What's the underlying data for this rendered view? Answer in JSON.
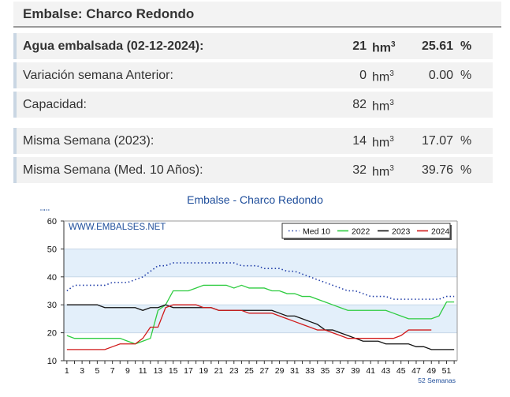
{
  "header": {
    "title": "Embalse: Charco Redondo"
  },
  "rows": [
    {
      "label": "Agua embalsada (02-12-2024):",
      "value": "21",
      "unit": "hm",
      "pct": "25.61",
      "pct_sign": "%"
    },
    {
      "label": "Variación semana Anterior:",
      "value": "0",
      "unit": "hm",
      "pct": "0.00",
      "pct_sign": "%"
    },
    {
      "label": "Capacidad:",
      "value": "82",
      "unit": "hm",
      "pct": "",
      "pct_sign": ""
    },
    {
      "label": "Misma Semana (2023):",
      "value": "14",
      "unit": "hm",
      "pct": "17.07",
      "pct_sign": "%"
    },
    {
      "label": "Misma Semana (Med. 10 Años):",
      "value": "32",
      "unit": "hm",
      "pct": "39.76",
      "pct_sign": "%"
    }
  ],
  "chart_data": {
    "type": "line",
    "title": "Embalse - Charco Redondo",
    "ylabel": "hm3",
    "xlabel": "52 Semanas",
    "watermark": "WWW.EMBALSES.NET",
    "ylim": [
      10,
      60
    ],
    "yticks": [
      10,
      20,
      30,
      40,
      50,
      60
    ],
    "xticks": [
      1,
      3,
      5,
      7,
      9,
      11,
      13,
      15,
      17,
      19,
      21,
      23,
      25,
      27,
      29,
      31,
      33,
      35,
      37,
      39,
      41,
      43,
      45,
      47,
      49,
      51
    ],
    "legend_position": "top-right",
    "series": [
      {
        "name": "Med 10",
        "color": "#1f3ca8",
        "dashed": true,
        "x": [
          1,
          2,
          3,
          4,
          5,
          6,
          7,
          8,
          9,
          10,
          11,
          12,
          13,
          14,
          15,
          16,
          17,
          18,
          19,
          20,
          21,
          22,
          23,
          24,
          25,
          26,
          27,
          28,
          29,
          30,
          31,
          32,
          33,
          34,
          35,
          36,
          37,
          38,
          39,
          40,
          41,
          42,
          43,
          44,
          45,
          46,
          47,
          48,
          49,
          50,
          51,
          52
        ],
        "values": [
          35,
          37,
          37,
          37,
          37,
          37,
          38,
          38,
          38,
          39,
          40,
          42,
          44,
          44,
          45,
          45,
          45,
          45,
          45,
          45,
          45,
          45,
          45,
          44,
          44,
          44,
          43,
          43,
          43,
          42,
          42,
          41,
          40,
          39,
          38,
          37,
          36,
          35,
          35,
          34,
          33,
          33,
          33,
          32,
          32,
          32,
          32,
          32,
          32,
          32,
          33,
          33
        ]
      },
      {
        "name": "2022",
        "color": "#2ecc40",
        "dashed": false,
        "x": [
          1,
          2,
          3,
          4,
          5,
          6,
          7,
          8,
          9,
          10,
          11,
          12,
          13,
          14,
          15,
          16,
          17,
          18,
          19,
          20,
          21,
          22,
          23,
          24,
          25,
          26,
          27,
          28,
          29,
          30,
          31,
          32,
          33,
          34,
          35,
          36,
          37,
          38,
          39,
          40,
          41,
          42,
          43,
          44,
          45,
          46,
          47,
          48,
          49,
          50,
          51,
          52
        ],
        "values": [
          19,
          18,
          18,
          18,
          18,
          18,
          18,
          18,
          17,
          16,
          17,
          18,
          28,
          30,
          35,
          35,
          35,
          36,
          37,
          37,
          37,
          37,
          36,
          37,
          36,
          36,
          36,
          35,
          35,
          34,
          34,
          33,
          33,
          32,
          31,
          30,
          29,
          28,
          28,
          28,
          28,
          28,
          28,
          27,
          26,
          25,
          25,
          25,
          25,
          26,
          31,
          31
        ]
      },
      {
        "name": "2023",
        "color": "#111111",
        "dashed": false,
        "x": [
          1,
          2,
          3,
          4,
          5,
          6,
          7,
          8,
          9,
          10,
          11,
          12,
          13,
          14,
          15,
          16,
          17,
          18,
          19,
          20,
          21,
          22,
          23,
          24,
          25,
          26,
          27,
          28,
          29,
          30,
          31,
          32,
          33,
          34,
          35,
          36,
          37,
          38,
          39,
          40,
          41,
          42,
          43,
          44,
          45,
          46,
          47,
          48,
          49,
          50,
          51,
          52
        ],
        "values": [
          30,
          30,
          30,
          30,
          30,
          29,
          29,
          29,
          29,
          29,
          28,
          29,
          29,
          30,
          29,
          29,
          29,
          29,
          29,
          29,
          28,
          28,
          28,
          28,
          28,
          28,
          28,
          28,
          27,
          26,
          26,
          25,
          24,
          23,
          21,
          21,
          20,
          19,
          18,
          17,
          17,
          17,
          16,
          16,
          16,
          16,
          15,
          15,
          14,
          14,
          14,
          14
        ]
      },
      {
        "name": "2024",
        "color": "#d11a1a",
        "dashed": false,
        "x": [
          1,
          2,
          3,
          4,
          5,
          6,
          7,
          8,
          9,
          10,
          11,
          12,
          13,
          14,
          15,
          16,
          17,
          18,
          19,
          20,
          21,
          22,
          23,
          24,
          25,
          26,
          27,
          28,
          29,
          30,
          31,
          32,
          33,
          34,
          35,
          36,
          37,
          38,
          39,
          40,
          41,
          42,
          43,
          44,
          45,
          46,
          47,
          48,
          49
        ],
        "values": [
          14,
          14,
          14,
          14,
          14,
          14,
          15,
          16,
          16,
          16,
          18,
          22,
          22,
          29,
          30,
          30,
          30,
          30,
          29,
          29,
          28,
          28,
          28,
          28,
          27,
          27,
          27,
          27,
          26,
          25,
          24,
          23,
          22,
          21,
          21,
          20,
          19,
          18,
          18,
          18,
          18,
          18,
          18,
          18,
          19,
          21,
          21,
          21,
          21
        ]
      }
    ]
  }
}
